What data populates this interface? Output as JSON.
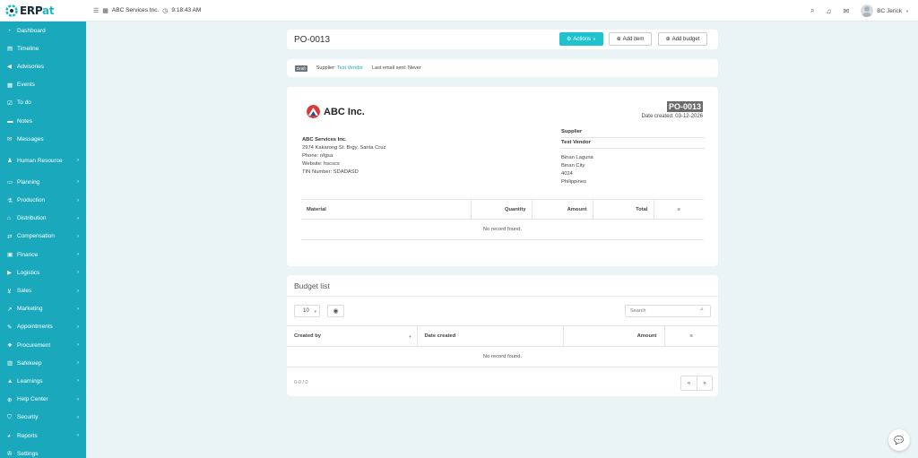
{
  "header": {
    "logo_text_1": "ERP",
    "logo_text_2": "at",
    "company": "ABC Services Inc.",
    "time": "9:18:43 AM",
    "user": "BC Jerick"
  },
  "sidebar": {
    "items": [
      {
        "label": "Dashboard",
        "icon": "dashboard-icon",
        "chevron": false
      },
      {
        "label": "Timeline",
        "icon": "timeline-icon",
        "chevron": false
      },
      {
        "label": "Advisories",
        "icon": "bullhorn-icon",
        "chevron": false
      },
      {
        "label": "Events",
        "icon": "calendar-icon",
        "chevron": false
      },
      {
        "label": "To do",
        "icon": "check-square-icon",
        "chevron": false
      },
      {
        "label": "Notes",
        "icon": "book-icon",
        "chevron": false
      },
      {
        "label": "Messages",
        "icon": "envelope-icon",
        "chevron": false
      },
      {
        "label": "Human Resource",
        "icon": "users-icon",
        "chevron": true
      },
      {
        "label": "Planning",
        "icon": "folder-icon",
        "chevron": true
      },
      {
        "label": "Production",
        "icon": "flask-icon",
        "chevron": true
      },
      {
        "label": "Distribution",
        "icon": "bank-icon",
        "chevron": true
      },
      {
        "label": "Compensation",
        "icon": "handshake-icon",
        "chevron": true
      },
      {
        "label": "Finance",
        "icon": "money-icon",
        "chevron": true
      },
      {
        "label": "Logistics",
        "icon": "truck-icon",
        "chevron": true
      },
      {
        "label": "Sales",
        "icon": "cart-icon",
        "chevron": true
      },
      {
        "label": "Marketing",
        "icon": "chart-icon",
        "chevron": true
      },
      {
        "label": "Appointments",
        "icon": "edit-icon",
        "chevron": true
      },
      {
        "label": "Procurement",
        "icon": "cubes-icon",
        "chevron": true
      },
      {
        "label": "Safekeep",
        "icon": "archive-icon",
        "chevron": true
      },
      {
        "label": "Learnings",
        "icon": "graduation-icon",
        "chevron": true
      },
      {
        "label": "Help Center",
        "icon": "plus-circle-icon",
        "chevron": true
      },
      {
        "label": "Security",
        "icon": "shield-icon",
        "chevron": true
      },
      {
        "label": "Reports",
        "icon": "pie-icon",
        "chevron": true
      },
      {
        "label": "Settings",
        "icon": "wrench-icon",
        "chevron": false
      }
    ]
  },
  "po": {
    "title": "PO-0013",
    "actions_label": "Actions",
    "add_item_label": "Add item",
    "add_budget_label": "Add budget",
    "status_badge": "Draft",
    "supplier_label": "Supplier:",
    "supplier_name": "Test Vendor",
    "last_email_label": "Last email sent:",
    "last_email_value": "Never",
    "logo_name": "ABC Inc.",
    "po_number": "PO-0013",
    "date_created": "Date created: 03-12-2026",
    "company": {
      "name": "ABC Services Inc.",
      "address": "2974 Kakarong St. Brgy. Santa Cruz",
      "phone": "Phone: nfgsa",
      "website": "Website: hscscs",
      "tin": "TIN Number: SDADASD"
    },
    "supplier": {
      "heading": "Supplier",
      "name": "Test Vendor",
      "line1": "Binan Laguna",
      "line2": "Binan City",
      "line3": "4024",
      "line4": "Philippines"
    },
    "table": {
      "headers": [
        "Material",
        "Quantity",
        "Amount",
        "Total"
      ],
      "empty": "No record found."
    }
  },
  "budget": {
    "title": "Budget list",
    "page_size": "10",
    "search_placeholder": "Search",
    "headers": [
      "Created by",
      "Date created",
      "Amount"
    ],
    "empty": "No record found.",
    "pager_info": "0-0 / 0",
    "prev": "«",
    "next": "»"
  }
}
